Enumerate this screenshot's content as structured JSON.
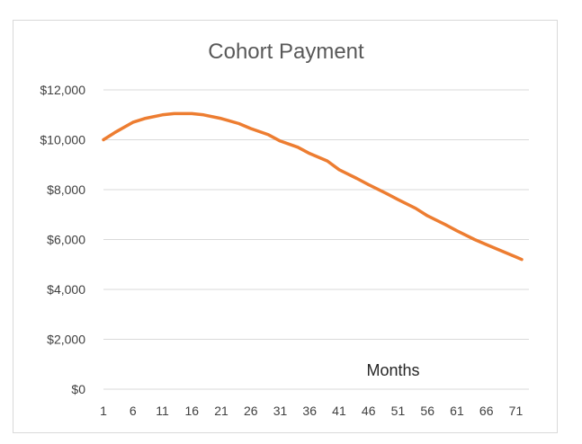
{
  "chart_data": {
    "type": "line",
    "title": "Cohort Payment",
    "xlabel": "",
    "ylabel": "",
    "annotation": "Months",
    "ylim": [
      0,
      12000
    ],
    "grid": true,
    "legend": "none",
    "x_tick_labels": [
      "1",
      "6",
      "11",
      "16",
      "21",
      "26",
      "31",
      "36",
      "41",
      "46",
      "51",
      "56",
      "61",
      "66",
      "71"
    ],
    "y_tick_labels": [
      "$0",
      "$2,000",
      "$4,000",
      "$6,000",
      "$8,000",
      "$10,000",
      "$12,000"
    ],
    "y_ticks": [
      0,
      2000,
      4000,
      6000,
      8000,
      10000,
      12000
    ],
    "x_range": [
      1,
      72
    ],
    "series": [
      {
        "color": "#ED7D31",
        "x": [
          1,
          3,
          6,
          8,
          11,
          13,
          16,
          18,
          21,
          24,
          26,
          29,
          31,
          34,
          36,
          39,
          41,
          44,
          46,
          49,
          51,
          54,
          56,
          59,
          61,
          64,
          66,
          68,
          71,
          72
        ],
        "y": [
          10000,
          10300,
          10700,
          10850,
          11000,
          11050,
          11050,
          11000,
          10850,
          10650,
          10450,
          10200,
          9950,
          9700,
          9450,
          9150,
          8800,
          8450,
          8200,
          7850,
          7600,
          7250,
          6950,
          6600,
          6350,
          6000,
          5800,
          5600,
          5300,
          5200
        ]
      }
    ]
  }
}
